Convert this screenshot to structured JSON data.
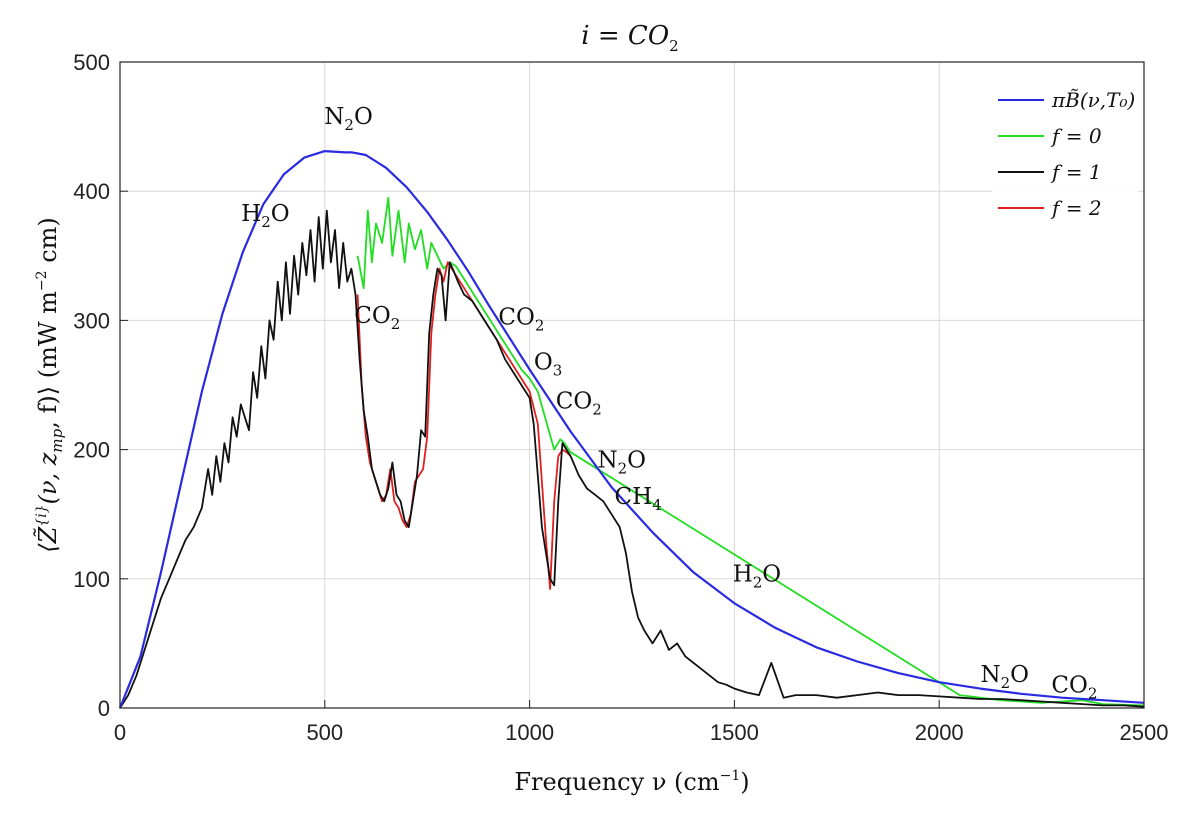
{
  "chart_data": {
    "type": "line",
    "title": {
      "prefix": "i =  CO",
      "sub": "2"
    },
    "xlabel": {
      "text": "Frequency ν (cm",
      "sup": "−1",
      "suffix": ")"
    },
    "ylabel": {
      "text": "⟨Z̃",
      "sup": "{i}",
      "mid": "(ν, z",
      "sub": "mp",
      "rest": ", f)⟩  (mW m",
      "sup2": "−2",
      "end": " cm)"
    },
    "xlim": [
      0,
      2500
    ],
    "ylim": [
      0,
      500
    ],
    "xticks": [
      "0",
      "500",
      "1000",
      "1500",
      "2000",
      "2500"
    ],
    "yticks": [
      "0",
      "100",
      "200",
      "300",
      "400",
      "500"
    ],
    "grid": true,
    "legend_position": "top-right",
    "colors": {
      "planck": "#2a2ae0",
      "f0": "#22dd22",
      "f1": "#111111",
      "f2": "#e02020"
    },
    "series": [
      {
        "name": "πB̃(ν,T₀)",
        "key": "planck",
        "x": [
          0,
          50,
          100,
          150,
          200,
          250,
          300,
          350,
          400,
          450,
          500,
          550,
          567,
          600,
          650,
          700,
          750,
          800,
          850,
          900,
          950,
          1000,
          1100,
          1200,
          1300,
          1400,
          1500,
          1600,
          1700,
          1800,
          1900,
          2000,
          2100,
          2200,
          2300,
          2400,
          2500
        ],
        "y": [
          0,
          40,
          105,
          175,
          245,
          305,
          353,
          390,
          413,
          426,
          431,
          430,
          430,
          428,
          418,
          403,
          384,
          362,
          338,
          312,
          287,
          262,
          214,
          171,
          136,
          105,
          81,
          62,
          47,
          36,
          27,
          20,
          15,
          11,
          8,
          6,
          4
        ]
      },
      {
        "name": "f = 0",
        "key": "f0",
        "x": [
          580,
          595,
          605,
          615,
          625,
          640,
          655,
          665,
          680,
          695,
          705,
          720,
          735,
          750,
          760,
          775,
          790,
          805,
          820,
          980,
          1000,
          1020,
          1060,
          1075,
          1085,
          1100,
          2050,
          2100,
          2150,
          2200,
          2250,
          2300,
          2350,
          2400,
          2500
        ],
        "y": [
          350,
          325,
          385,
          345,
          375,
          360,
          395,
          350,
          385,
          345,
          375,
          355,
          370,
          340,
          360,
          350,
          340,
          345,
          342,
          262,
          255,
          245,
          200,
          208,
          205,
          198,
          10,
          8,
          6,
          5,
          4,
          5,
          6,
          3,
          2
        ]
      },
      {
        "name": "f = 1",
        "key": "f1",
        "x": [
          0,
          20,
          40,
          60,
          80,
          100,
          120,
          140,
          160,
          180,
          200,
          215,
          225,
          235,
          245,
          255,
          265,
          275,
          285,
          295,
          305,
          315,
          325,
          335,
          345,
          355,
          365,
          375,
          385,
          395,
          405,
          415,
          425,
          435,
          445,
          455,
          465,
          475,
          485,
          495,
          505,
          515,
          525,
          535,
          545,
          555,
          565,
          575,
          585,
          595,
          605,
          615,
          625,
          635,
          645,
          655,
          665,
          675,
          685,
          695,
          705,
          715,
          725,
          735,
          745,
          755,
          765,
          775,
          785,
          795,
          805,
          815,
          825,
          840,
          860,
          880,
          900,
          920,
          940,
          960,
          980,
          1000,
          1010,
          1020,
          1030,
          1040,
          1050,
          1060,
          1070,
          1080,
          1100,
          1120,
          1140,
          1160,
          1180,
          1200,
          1220,
          1235,
          1250,
          1265,
          1280,
          1300,
          1320,
          1340,
          1360,
          1380,
          1400,
          1420,
          1440,
          1460,
          1480,
          1500,
          1530,
          1560,
          1590,
          1620,
          1650,
          1700,
          1750,
          1800,
          1850,
          1900,
          1950,
          2000,
          2050,
          2100,
          2150,
          2200,
          2250,
          2300,
          2350,
          2400,
          2450,
          2500
        ],
        "y": [
          0,
          10,
          25,
          45,
          65,
          85,
          100,
          115,
          130,
          140,
          155,
          185,
          165,
          195,
          175,
          205,
          190,
          225,
          210,
          235,
          225,
          215,
          260,
          240,
          280,
          255,
          300,
          285,
          330,
          300,
          345,
          305,
          350,
          320,
          360,
          335,
          370,
          330,
          380,
          340,
          385,
          345,
          370,
          325,
          360,
          330,
          340,
          320,
          270,
          230,
          210,
          185,
          175,
          165,
          160,
          170,
          190,
          165,
          160,
          145,
          140,
          160,
          180,
          215,
          210,
          290,
          320,
          340,
          335,
          300,
          345,
          338,
          330,
          320,
          315,
          305,
          295,
          285,
          270,
          260,
          250,
          240,
          220,
          180,
          140,
          120,
          100,
          95,
          160,
          205,
          195,
          180,
          170,
          165,
          160,
          150,
          140,
          120,
          90,
          70,
          60,
          50,
          60,
          45,
          50,
          40,
          35,
          30,
          25,
          20,
          18,
          15,
          12,
          10,
          35,
          8,
          10,
          10,
          8,
          10,
          12,
          10,
          10,
          9,
          8,
          7,
          7,
          6,
          5,
          4,
          3,
          2,
          2,
          1
        ]
      },
      {
        "name": "f = 2",
        "key": "f2",
        "x": [
          580,
          590,
          600,
          610,
          620,
          630,
          640,
          650,
          660,
          670,
          680,
          690,
          700,
          710,
          720,
          730,
          740,
          750,
          760,
          770,
          780,
          790,
          800,
          1000,
          1020,
          1040,
          1050,
          1060,
          1070,
          1080,
          1090,
          1100
        ],
        "y": [
          320,
          250,
          210,
          190,
          180,
          170,
          160,
          165,
          185,
          160,
          155,
          145,
          140,
          150,
          175,
          180,
          185,
          210,
          290,
          320,
          340,
          330,
          345,
          245,
          220,
          130,
          92,
          160,
          195,
          200,
          198,
          195
        ]
      }
    ],
    "annotations": [
      {
        "id": "n2o-top",
        "main": "N",
        "sub": "2",
        "tail": "O",
        "x": 558,
        "y": 452
      },
      {
        "id": "h2o-left",
        "main": "H",
        "sub": "2",
        "tail": "O",
        "x": 355,
        "y": 377
      },
      {
        "id": "co2-mid",
        "main": "CO",
        "sub": "2",
        "tail": "",
        "x": 628,
        "y": 298
      },
      {
        "id": "co2-right",
        "main": "CO",
        "sub": "2",
        "tail": "",
        "x": 980,
        "y": 297
      },
      {
        "id": "o3",
        "main": "O",
        "sub": "3",
        "tail": "",
        "x": 1045,
        "y": 262
      },
      {
        "id": "co2-right2",
        "main": "CO",
        "sub": "2",
        "tail": "",
        "x": 1120,
        "y": 232
      },
      {
        "id": "n2o-mid",
        "main": "N",
        "sub": "2",
        "tail": "O",
        "x": 1225,
        "y": 186
      },
      {
        "id": "ch4",
        "main": "CH",
        "sub": "4",
        "tail": "",
        "x": 1265,
        "y": 158
      },
      {
        "id": "h2o-right",
        "main": "H",
        "sub": "2",
        "tail": "O",
        "x": 1555,
        "y": 98
      },
      {
        "id": "n2o-low",
        "main": "N",
        "sub": "2",
        "tail": "O",
        "x": 2160,
        "y": 20
      },
      {
        "id": "co2-low",
        "main": "CO",
        "sub": "2",
        "tail": "",
        "x": 2330,
        "y": 12
      }
    ]
  }
}
